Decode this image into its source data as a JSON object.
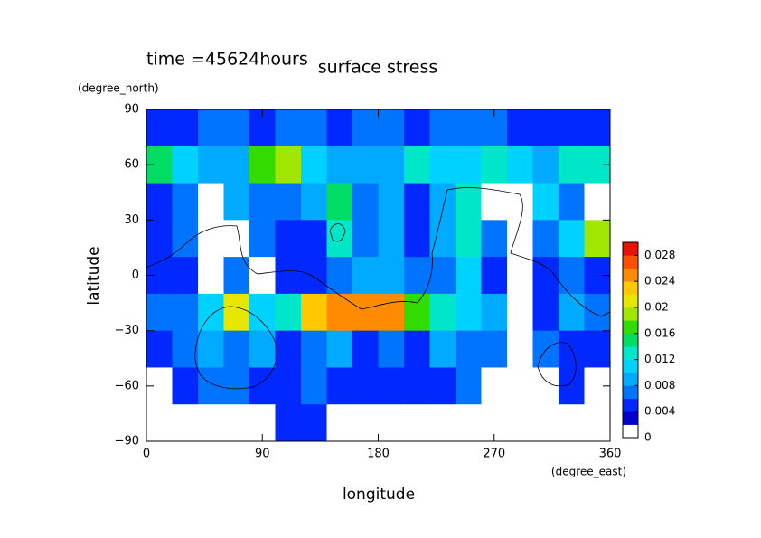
{
  "chart_data": {
    "type": "heatmap",
    "title": "surface stress",
    "subtitle": "time =45624hours",
    "x_label": "longitude",
    "x_unit": "(degree_east)",
    "y_label": "latitude",
    "y_unit": "(degree_north)",
    "xlim": [
      0,
      360
    ],
    "xticks": [
      0,
      90,
      180,
      270,
      360
    ],
    "ylim": [
      -90,
      90
    ],
    "yticks": [
      {
        "value": -90,
        "label": "−90"
      },
      {
        "value": -60,
        "label": "−60"
      },
      {
        "value": -30,
        "label": "−30"
      },
      0,
      30,
      60,
      90
    ],
    "x": [
      10,
      30,
      50,
      70,
      90,
      110,
      130,
      150,
      170,
      190,
      210,
      230,
      250,
      270,
      290,
      310,
      330,
      350
    ],
    "y": [
      80,
      60,
      40,
      20,
      0,
      -20,
      -40,
      -60,
      -80
    ],
    "values": [
      [
        0.004,
        0.005,
        0.006,
        0.006,
        0.005,
        0.006,
        0.006,
        0.005,
        0.006,
        0.006,
        0.005,
        0.006,
        0.006,
        0.006,
        0.005,
        0.004,
        0.004,
        0.004
      ],
      [
        0.014,
        0.01,
        0.008,
        0.008,
        0.016,
        0.018,
        0.01,
        0.008,
        0.008,
        0.008,
        0.012,
        0.01,
        0.01,
        0.012,
        0.01,
        0.008,
        0.012,
        0.012
      ],
      [
        0.004,
        0.006,
        0.001,
        0.008,
        0.006,
        0.006,
        0.008,
        0.014,
        0.006,
        0.008,
        0.004,
        0.008,
        0.012,
        0.001,
        0.001,
        0.01,
        0.006,
        0.001
      ],
      [
        0.004,
        0.006,
        0.001,
        0.001,
        0.006,
        0.004,
        0.004,
        0.012,
        0.006,
        0.008,
        0.004,
        0.008,
        0.012,
        0.006,
        0.001,
        0.006,
        0.01,
        0.018
      ],
      [
        0.004,
        0.004,
        0.001,
        0.006,
        0.001,
        0.004,
        0.004,
        0.006,
        0.008,
        0.008,
        0.006,
        0.006,
        0.01,
        0.004,
        0.001,
        0.004,
        0.006,
        0.004
      ],
      [
        0.006,
        0.006,
        0.01,
        0.02,
        0.01,
        0.012,
        0.022,
        0.024,
        0.024,
        0.024,
        0.016,
        0.012,
        0.01,
        0.008,
        0.001,
        0.004,
        0.008,
        0.006
      ],
      [
        0.004,
        0.006,
        0.008,
        0.006,
        0.008,
        0.004,
        0.006,
        0.008,
        0.004,
        0.006,
        0.004,
        0.008,
        0.006,
        0.006,
        0.001,
        0.006,
        0.004,
        0.004
      ],
      [
        0.001,
        0.004,
        0.006,
        0.006,
        0.004,
        0.004,
        0.006,
        0.004,
        0.004,
        0.004,
        0.004,
        0.004,
        0.006,
        0.001,
        0.001,
        0.001,
        0.004,
        0.001
      ],
      [
        0.001,
        0.001,
        0.001,
        0.001,
        0.001,
        0.004,
        0.004,
        0.001,
        0.001,
        0.001,
        0.001,
        0.001,
        0.001,
        0.001,
        0.001,
        0.001,
        0.001,
        0.001
      ]
    ],
    "colorbar": {
      "levels": [
        0,
        0.002,
        0.004,
        0.006,
        0.008,
        0.01,
        0.012,
        0.014,
        0.016,
        0.018,
        0.02,
        0.022,
        0.024,
        0.026,
        0.028,
        0.03
      ],
      "colors": [
        "#ffffff",
        "#0000cd",
        "#0028ff",
        "#0073ff",
        "#00aaff",
        "#00d2ff",
        "#00e6c8",
        "#00dc64",
        "#32dc00",
        "#a0e600",
        "#e6e600",
        "#ffc800",
        "#ff8c00",
        "#ff5000",
        "#e61400"
      ],
      "ticks": [
        0,
        0.004,
        0.008,
        0.012,
        0.016,
        0.02,
        0.024,
        0.028
      ]
    }
  }
}
